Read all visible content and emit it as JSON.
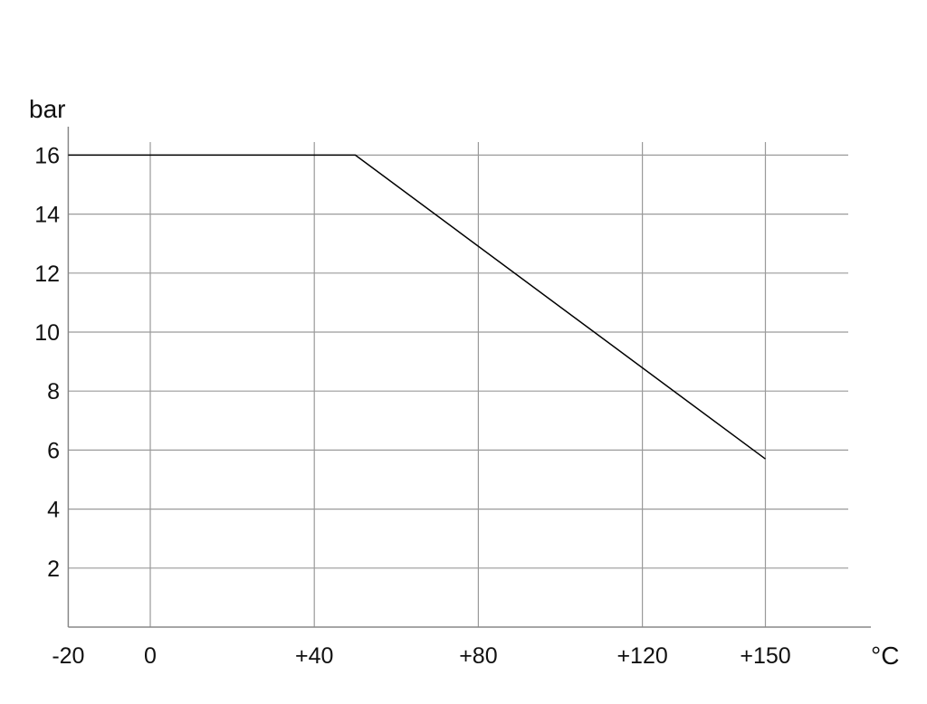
{
  "chart_data": {
    "type": "line",
    "title": "",
    "xlabel": "°C",
    "ylabel": "bar",
    "xlim": [
      -20,
      175
    ],
    "ylim": [
      0,
      17
    ],
    "x_ticks": [
      -20,
      0,
      40,
      80,
      120,
      150
    ],
    "x_tick_labels": [
      "-20",
      "0",
      "+40",
      "+80",
      "+120",
      "+150"
    ],
    "y_ticks": [
      2,
      4,
      6,
      8,
      10,
      12,
      14,
      16
    ],
    "y_tick_labels": [
      "2",
      "4",
      "6",
      "8",
      "10",
      "12",
      "14",
      "16"
    ],
    "grid": true,
    "series": [
      {
        "x": [
          -20,
          50,
          150
        ],
        "y": [
          16,
          16,
          5.7
        ],
        "color": "#000000"
      }
    ],
    "grid_color": "#9a9a9a"
  }
}
